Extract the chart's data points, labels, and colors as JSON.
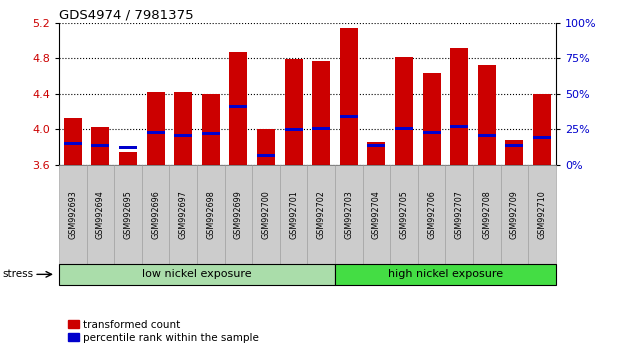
{
  "title": "GDS4974 / 7981375",
  "samples": [
    "GSM992693",
    "GSM992694",
    "GSM992695",
    "GSM992696",
    "GSM992697",
    "GSM992698",
    "GSM992699",
    "GSM992700",
    "GSM992701",
    "GSM992702",
    "GSM992703",
    "GSM992704",
    "GSM992705",
    "GSM992706",
    "GSM992707",
    "GSM992708",
    "GSM992709",
    "GSM992710"
  ],
  "red_values": [
    4.13,
    4.02,
    3.74,
    4.42,
    4.42,
    4.4,
    4.87,
    4.0,
    4.79,
    4.77,
    5.14,
    3.86,
    4.82,
    4.63,
    4.92,
    4.73,
    3.88,
    4.4
  ],
  "blue_values": [
    3.84,
    3.82,
    3.79,
    3.96,
    3.93,
    3.95,
    4.26,
    3.7,
    4.0,
    4.01,
    4.14,
    3.82,
    4.01,
    3.96,
    4.03,
    3.93,
    3.82,
    3.91
  ],
  "ymin": 3.6,
  "ymax": 5.2,
  "yticks_left": [
    3.6,
    4.0,
    4.4,
    4.8,
    5.2
  ],
  "right_ytick_pct": [
    0,
    25,
    50,
    75,
    100
  ],
  "low_nickel_count": 10,
  "legend_red": "transformed count",
  "legend_blue": "percentile rank within the sample",
  "group_label_low": "low nickel exposure",
  "group_label_high": "high nickel exposure",
  "stress_label": "stress",
  "bar_color": "#cc0000",
  "blue_color": "#0000cc",
  "bar_width": 0.65,
  "low_group_color": "#aaddaa",
  "high_group_color": "#44dd44",
  "left_tick_color": "#cc0000",
  "right_tick_color": "#0000cc",
  "tick_label_bg": "#cccccc",
  "tick_label_edge": "#999999"
}
